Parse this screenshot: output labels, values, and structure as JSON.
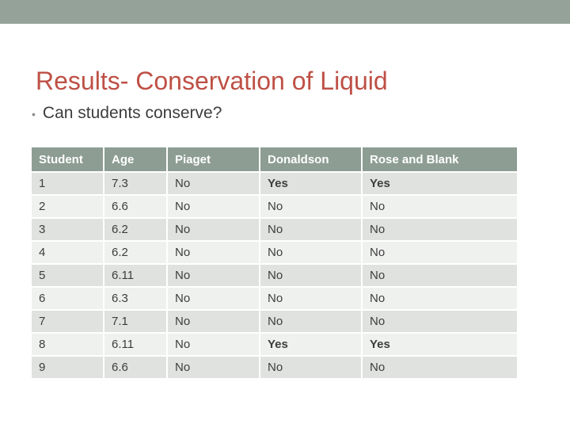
{
  "slide": {
    "title": "Results- Conservation of Liquid",
    "bullet": {
      "glyph": "•",
      "text": "Can students conserve?"
    }
  },
  "table": {
    "columns": [
      "Student",
      "Age",
      "Piaget",
      "Donaldson",
      "Rose and Blank"
    ],
    "rows": [
      [
        "1",
        "7.3",
        "No",
        "Yes",
        "Yes"
      ],
      [
        "2",
        "6.6",
        "No",
        "No",
        "No"
      ],
      [
        "3",
        "6.2",
        "No",
        "No",
        "No"
      ],
      [
        "4",
        "6.2",
        "No",
        "No",
        "No"
      ],
      [
        "5",
        "6.11",
        "No",
        "No",
        "No"
      ],
      [
        "6",
        "6.3",
        "No",
        "No",
        "No"
      ],
      [
        "7",
        "7.1",
        "No",
        "No",
        "No"
      ],
      [
        "8",
        "6.11",
        "No",
        "Yes",
        "Yes"
      ],
      [
        "9",
        "6.6",
        "No",
        "No",
        "No"
      ]
    ],
    "bold_value": "Yes"
  },
  "colors": {
    "band": "#95A29A",
    "header_bg": "#8D9D94",
    "row_odd": "#DFE2DF",
    "row_even": "#EFF1EF",
    "title": "#BE5045",
    "body_text": "#3D3D3D"
  }
}
